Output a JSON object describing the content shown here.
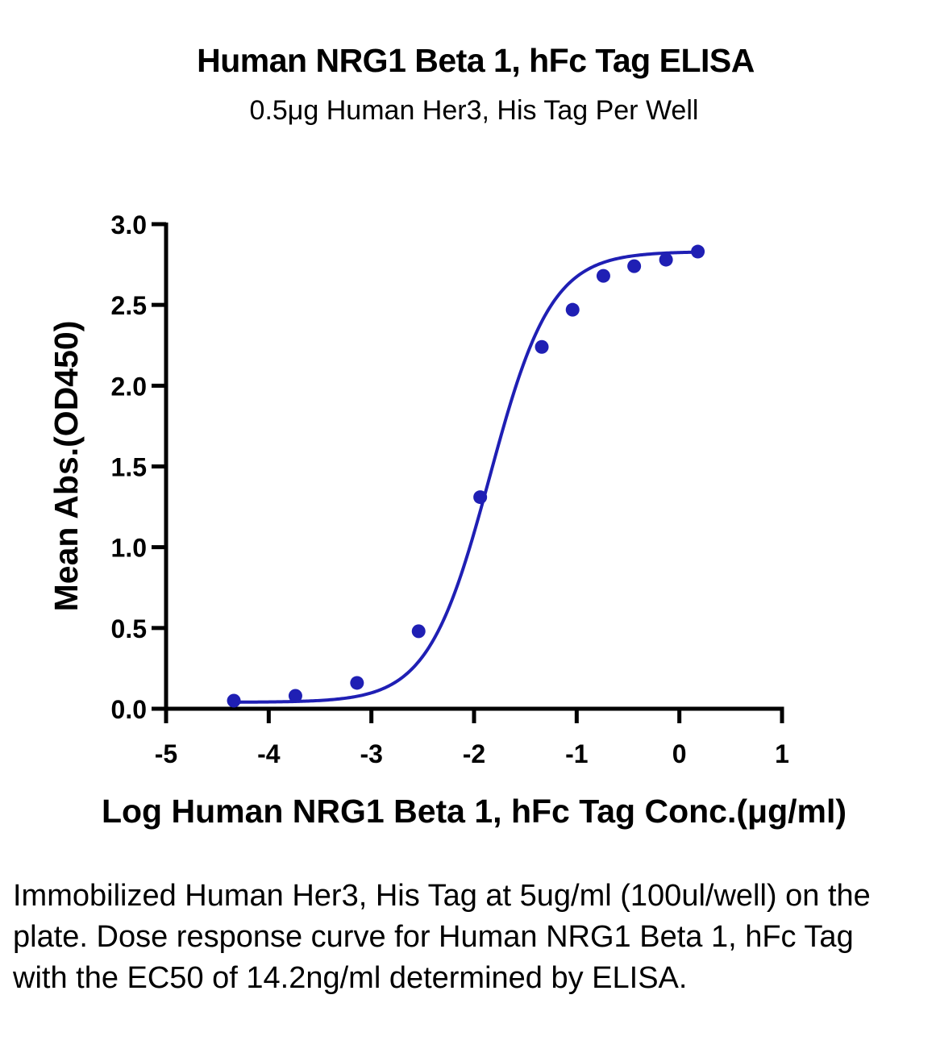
{
  "chart_data": {
    "type": "scatter",
    "title": "Human NRG1 Beta 1, hFc Tag ELISA",
    "subtitle": "0.5μg Human Her3, His Tag Per Well",
    "xlabel": "Log Human NRG1 Beta 1, hFc Tag Conc.(μg/ml)",
    "ylabel": "Mean Abs.(OD450)",
    "xlim": [
      -5,
      1
    ],
    "ylim": [
      0,
      3.0
    ],
    "x_ticks": [
      -5,
      -4,
      -3,
      -2,
      -1,
      0,
      1
    ],
    "x_tick_labels": [
      "-5",
      "-4",
      "-3",
      "-2",
      "-1",
      "0",
      "1"
    ],
    "y_ticks": [
      0,
      0.5,
      1.0,
      1.5,
      2.0,
      2.5,
      3.0
    ],
    "y_tick_labels": [
      "0.0",
      "0.5",
      "1.0",
      "1.5",
      "2.0",
      "2.5",
      "3.0"
    ],
    "grid": false,
    "legend": "none",
    "series": [
      {
        "color": "#1f1fb4",
        "x": [
          -4.34,
          -3.74,
          -3.14,
          -2.54,
          -1.94,
          -1.34,
          -1.04,
          -0.74,
          -0.44,
          -0.13,
          0.18
        ],
        "y": [
          0.05,
          0.08,
          0.16,
          0.48,
          1.31,
          2.24,
          2.47,
          2.68,
          2.74,
          2.78,
          2.83
        ],
        "fit": "four-parameter logistic",
        "ec50_log": -1.848
      }
    ],
    "caption": "Immobilized Human Her3, His Tag at 5ug/ml (100ul/well) on the plate. Dose response curve for Human NRG1 Beta 1, hFc Tag with the EC50 of 14.2ng/ml determined by ELISA."
  }
}
